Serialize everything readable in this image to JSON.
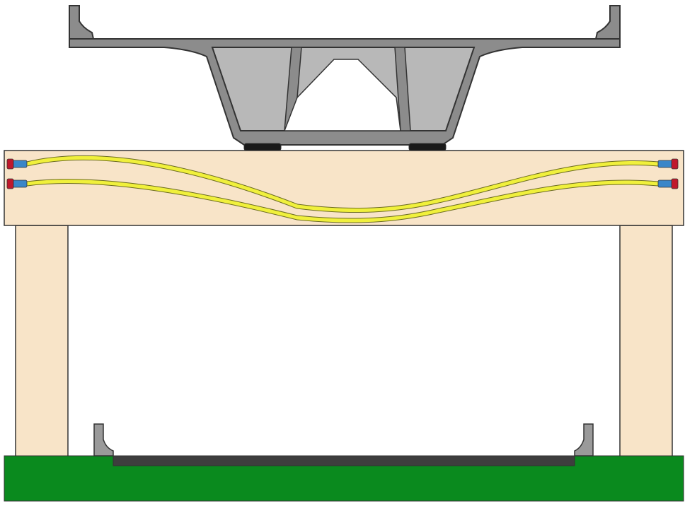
{
  "colors": {
    "background": "#ffffff",
    "outline": "#333333",
    "deck": "#8c8c8c",
    "box_fill": "#b8b8b8",
    "cap_beam": "#f8e4c8",
    "columns": "#f8e4c8",
    "tendon": "#f0f03c",
    "tendon_edge": "#6b6b20",
    "anchor_blue": "#3a86c8",
    "anchor_red": "#c0182c",
    "bearing": "#1a1a1a",
    "ground": "#0a8a1e",
    "lower_roadway": "#3e3e3e",
    "barrier": "#9a9a9a"
  },
  "components": {
    "superstructure": "box-girder",
    "bearings": 2,
    "cap_beam": "cap-beam",
    "tendons": 2,
    "anchorages_per_end": 2,
    "columns": 2,
    "lower_roadway_barriers": 2
  }
}
